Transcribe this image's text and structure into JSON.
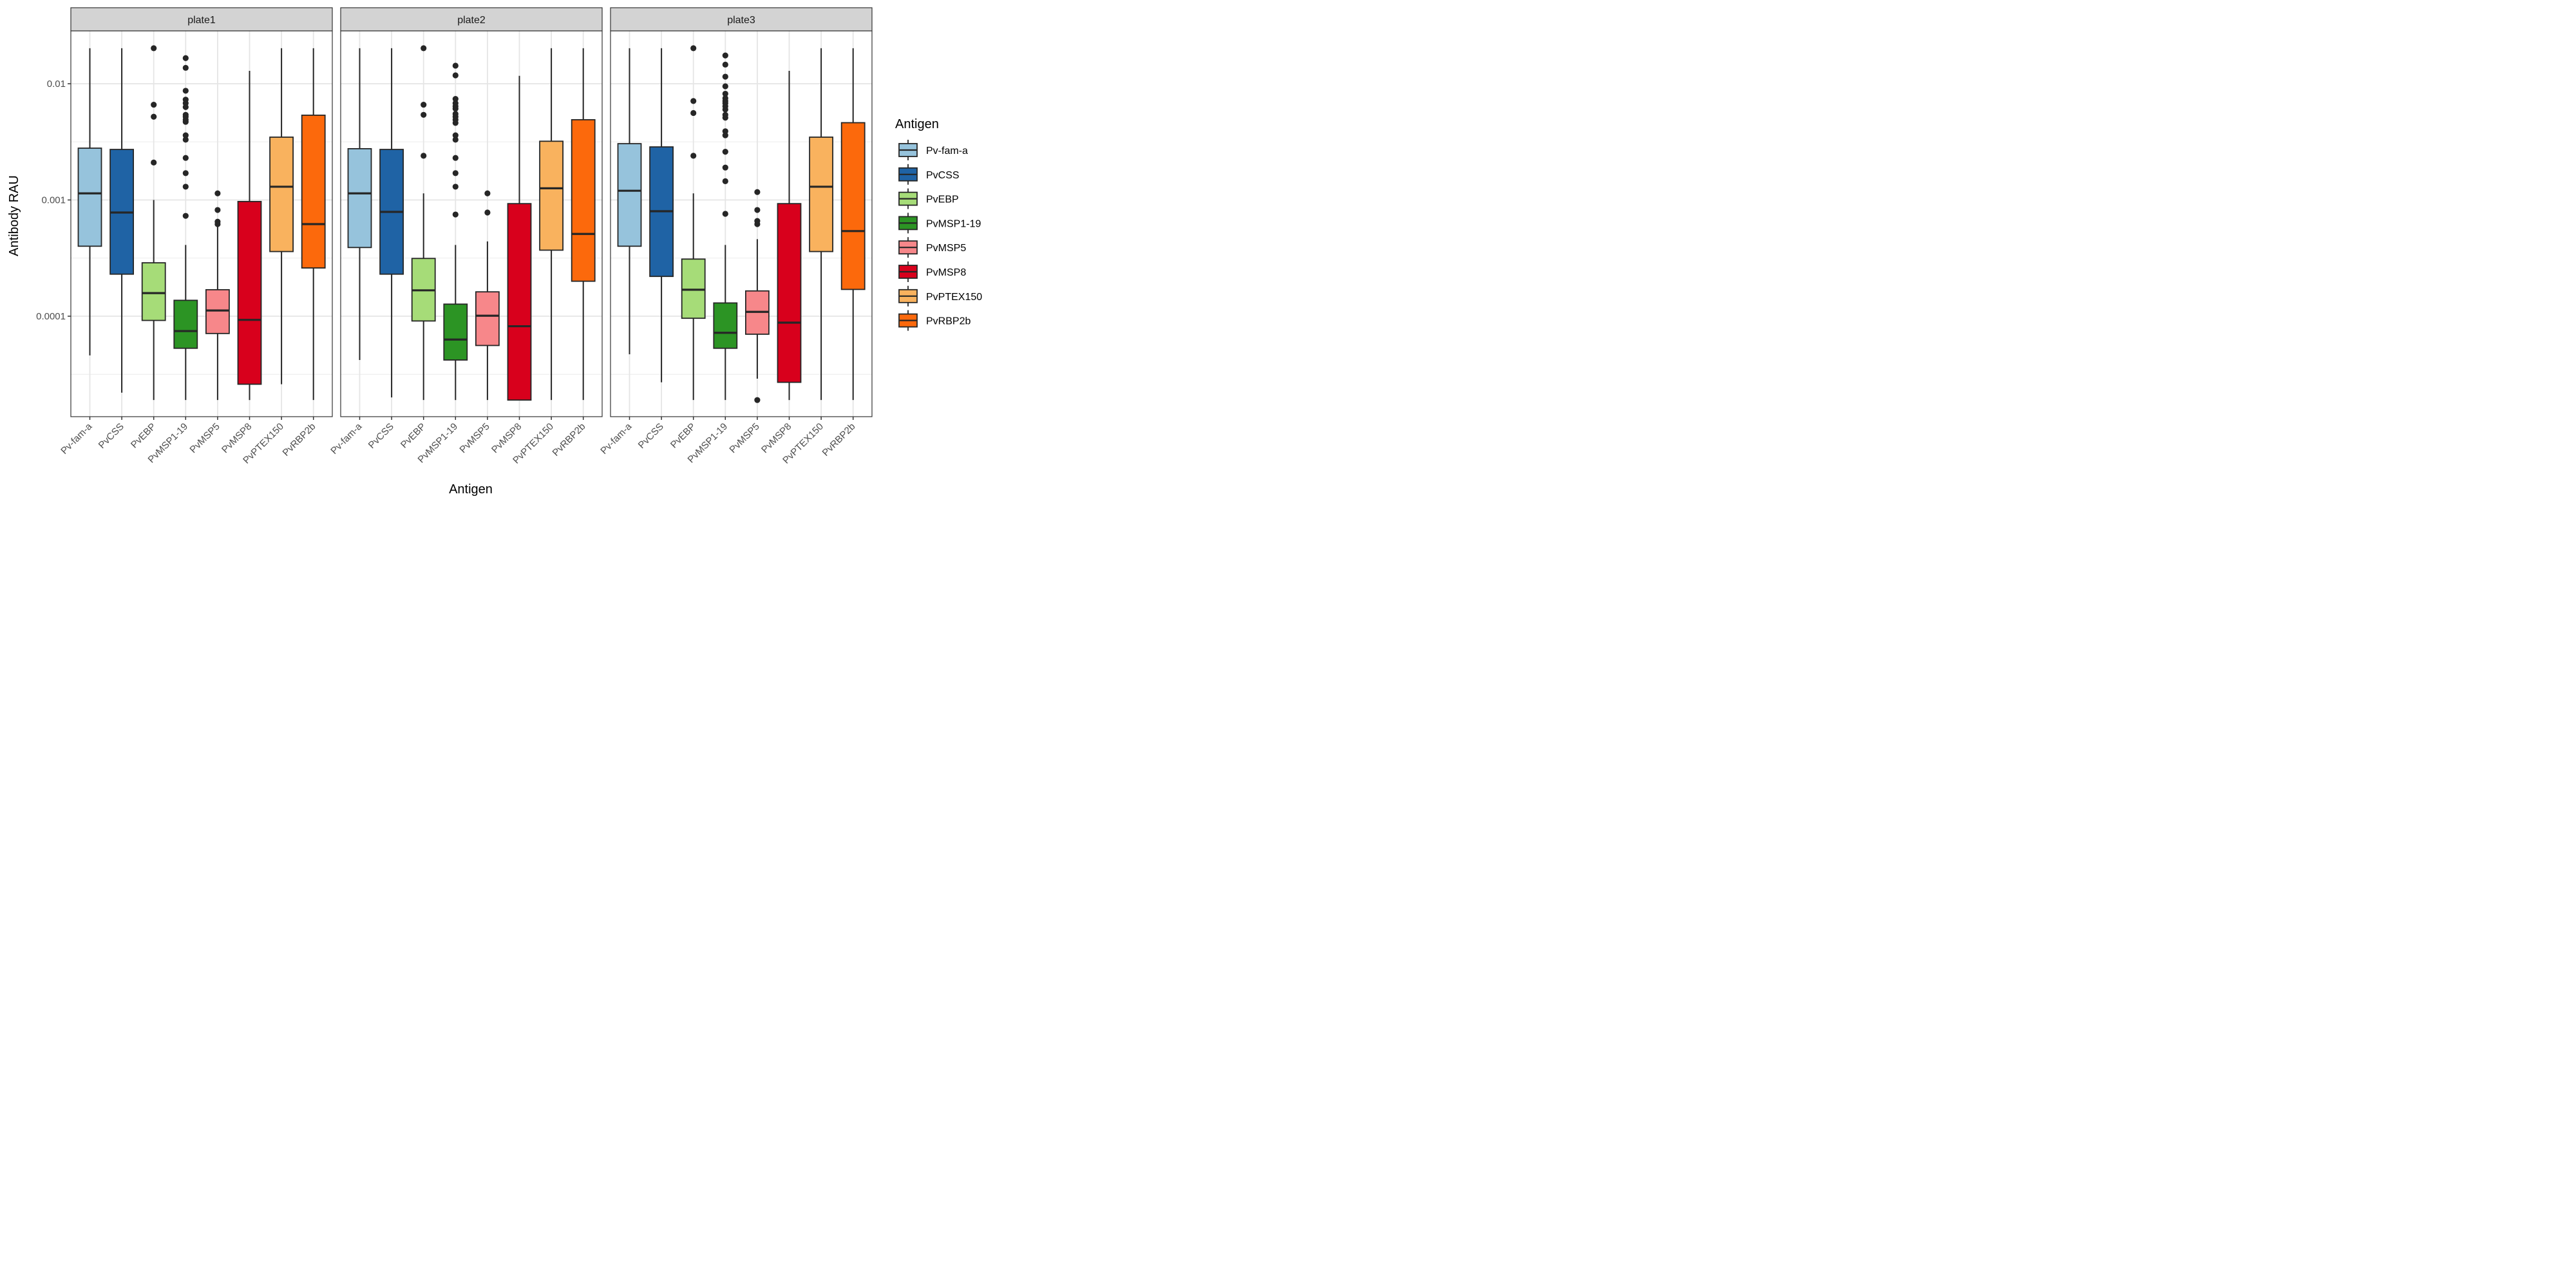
{
  "chart_data": {
    "type": "boxplot",
    "facet_by": "plate",
    "panels": [
      "plate1",
      "plate2",
      "plate3"
    ],
    "xlabel": "Antigen",
    "ylabel": "Antibody RAU",
    "y_scale": "log10",
    "ylim": [
      1.4e-05,
      0.034
    ],
    "y_ticks": [
      0.0001,
      0.001,
      0.01
    ],
    "y_tick_labels": [
      "0.0001",
      "0.001",
      "0.01"
    ],
    "grid": true,
    "categories": [
      "Pv-fam-a",
      "PvCSS",
      "PvEBP",
      "PvMSP1-19",
      "PvMSP5",
      "PvMSP8",
      "PvPTEX150",
      "PvRBP2b"
    ],
    "colors": {
      "Pv-fam-a": "#96C3DC",
      "PvCSS": "#1F63A5",
      "PvEBP": "#A6DC78",
      "PvMSP1-19": "#2C9424",
      "PvMSP5": "#F7878A",
      "PvMSP8": "#D8001C",
      "PvPTEX150": "#F9B25E",
      "PvRBP2b": "#FC690C"
    },
    "legend": {
      "title": "Antigen",
      "position": "right",
      "entries": [
        "Pv-fam-a",
        "PvCSS",
        "PvEBP",
        "PvMSP1-19",
        "PvMSP5",
        "PvMSP8",
        "PvPTEX150",
        "PvRBP2b"
      ]
    },
    "series": [
      {
        "panel": "plate1",
        "boxes": [
          {
            "antigen": "Pv-fam-a",
            "whisker_low": 4.6e-05,
            "q1": 0.0004,
            "median": 0.00114,
            "q3": 0.00279,
            "whisker_high": 0.0202,
            "outliers": []
          },
          {
            "antigen": "PvCSS",
            "whisker_low": 2.2e-05,
            "q1": 0.00023,
            "median": 0.00078,
            "q3": 0.00272,
            "whisker_high": 0.0202,
            "outliers": []
          },
          {
            "antigen": "PvEBP",
            "whisker_low": 1.9e-05,
            "q1": 9.2e-05,
            "median": 0.000158,
            "q3": 0.000288,
            "whisker_high": 0.001,
            "outliers": [
              0.0202,
              0.0066,
              0.0052,
              0.0021
            ]
          },
          {
            "antigen": "PvMSP1-19",
            "whisker_low": 1.9e-05,
            "q1": 5.3e-05,
            "median": 7.45e-05,
            "q3": 0.000137,
            "whisker_high": 0.00041,
            "outliers": [
              0.0166,
              0.0137,
              0.0087,
              0.0073,
              0.0068,
              0.0063,
              0.0054,
              0.0052,
              0.0049,
              0.0047,
              0.0036,
              0.0033,
              0.0023,
              0.0017,
              0.0013,
              0.00073
            ]
          },
          {
            "antigen": "PvMSP5",
            "whisker_low": 1.9e-05,
            "q1": 7.1e-05,
            "median": 0.000112,
            "q3": 0.000169,
            "whisker_high": 0.0006,
            "outliers": [
              0.00114,
              0.00082,
              0.00065,
              0.00062
            ]
          },
          {
            "antigen": "PvMSP8",
            "whisker_low": 1.9e-05,
            "q1": 2.6e-05,
            "median": 9.3e-05,
            "q3": 0.00097,
            "whisker_high": 0.0129,
            "outliers": []
          },
          {
            "antigen": "PvPTEX150",
            "whisker_low": 2.6e-05,
            "q1": 0.00036,
            "median": 0.0013,
            "q3": 0.00347,
            "whisker_high": 0.0202,
            "outliers": []
          },
          {
            "antigen": "PvRBP2b",
            "whisker_low": 1.9e-05,
            "q1": 0.00026,
            "median": 0.00062,
            "q3": 0.00536,
            "whisker_high": 0.0202,
            "outliers": []
          }
        ]
      },
      {
        "panel": "plate2",
        "boxes": [
          {
            "antigen": "Pv-fam-a",
            "whisker_low": 4.2e-05,
            "q1": 0.00039,
            "median": 0.00114,
            "q3": 0.00276,
            "whisker_high": 0.0202,
            "outliers": []
          },
          {
            "antigen": "PvCSS",
            "whisker_low": 2e-05,
            "q1": 0.00023,
            "median": 0.00079,
            "q3": 0.00272,
            "whisker_high": 0.0202,
            "outliers": []
          },
          {
            "antigen": "PvEBP",
            "whisker_low": 1.9e-05,
            "q1": 9.1e-05,
            "median": 0.000167,
            "q3": 0.000314,
            "whisker_high": 0.00114,
            "outliers": [
              0.0202,
              0.0066,
              0.0054,
              0.0024
            ]
          },
          {
            "antigen": "PvMSP1-19",
            "whisker_low": 1.9e-05,
            "q1": 4.2e-05,
            "median": 6.3e-05,
            "q3": 0.000127,
            "whisker_high": 0.00041,
            "outliers": [
              0.0143,
              0.0118,
              0.0074,
              0.0068,
              0.0064,
              0.0061,
              0.0055,
              0.0052,
              0.0049,
              0.0046,
              0.0036,
              0.0033,
              0.0023,
              0.0017,
              0.0013,
              0.00075
            ]
          },
          {
            "antigen": "PvMSP5",
            "whisker_low": 1.9e-05,
            "q1": 5.6e-05,
            "median": 0.000101,
            "q3": 0.000162,
            "whisker_high": 0.00044,
            "outliers": [
              0.00114,
              0.00078
            ]
          },
          {
            "antigen": "PvMSP8",
            "whisker_low": 1.9e-05,
            "q1": 1.9e-05,
            "median": 8.2e-05,
            "q3": 0.00093,
            "whisker_high": 0.0117,
            "outliers": []
          },
          {
            "antigen": "PvPTEX150",
            "whisker_low": 1.9e-05,
            "q1": 0.00037,
            "median": 0.00126,
            "q3": 0.0032,
            "whisker_high": 0.0202,
            "outliers": []
          },
          {
            "antigen": "PvRBP2b",
            "whisker_low": 1.9e-05,
            "q1": 0.0002,
            "median": 0.00051,
            "q3": 0.0049,
            "whisker_high": 0.0202,
            "outliers": []
          }
        ]
      },
      {
        "panel": "plate3",
        "boxes": [
          {
            "antigen": "Pv-fam-a",
            "whisker_low": 4.7e-05,
            "q1": 0.0004,
            "median": 0.0012,
            "q3": 0.00305,
            "whisker_high": 0.0202,
            "outliers": []
          },
          {
            "antigen": "PvCSS",
            "whisker_low": 2.7e-05,
            "q1": 0.00022,
            "median": 0.0008,
            "q3": 0.00286,
            "whisker_high": 0.0202,
            "outliers": []
          },
          {
            "antigen": "PvEBP",
            "whisker_low": 1.9e-05,
            "q1": 9.6e-05,
            "median": 0.000169,
            "q3": 0.00031,
            "whisker_high": 0.00114,
            "outliers": [
              0.0202,
              0.0071,
              0.0056,
              0.0024
            ]
          },
          {
            "antigen": "PvMSP1-19",
            "whisker_low": 1.9e-05,
            "q1": 5.3e-05,
            "median": 7.2e-05,
            "q3": 0.00013,
            "whisker_high": 0.00041,
            "outliers": [
              0.0175,
              0.0146,
              0.0115,
              0.0095,
              0.0082,
              0.0075,
              0.0071,
              0.0068,
              0.0064,
              0.006,
              0.0054,
              0.0051,
              0.0039,
              0.0036,
              0.0026,
              0.0019,
              0.00145,
              0.00076
            ]
          },
          {
            "antigen": "PvMSP5",
            "whisker_low": 2.9e-05,
            "q1": 7e-05,
            "median": 0.000109,
            "q3": 0.000165,
            "whisker_high": 0.00046,
            "outliers": [
              0.00117,
              0.00082,
              0.00066,
              0.00062,
              1.9e-05
            ]
          },
          {
            "antigen": "PvMSP8",
            "whisker_low": 1.9e-05,
            "q1": 2.7e-05,
            "median": 8.8e-05,
            "q3": 0.00093,
            "whisker_high": 0.0129,
            "outliers": []
          },
          {
            "antigen": "PvPTEX150",
            "whisker_low": 1.9e-05,
            "q1": 0.00036,
            "median": 0.0013,
            "q3": 0.00347,
            "whisker_high": 0.0202,
            "outliers": []
          },
          {
            "antigen": "PvRBP2b",
            "whisker_low": 1.9e-05,
            "q1": 0.00017,
            "median": 0.00054,
            "q3": 0.00462,
            "whisker_high": 0.0202,
            "outliers": []
          }
        ]
      }
    ]
  }
}
